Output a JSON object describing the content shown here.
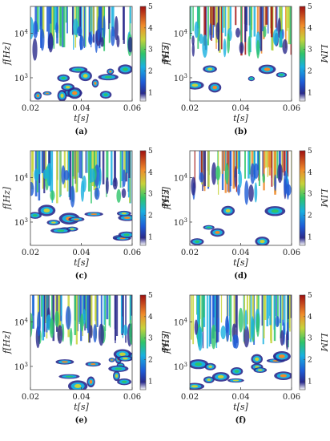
{
  "figure": {
    "panels": [
      {
        "label": "(a)"
      },
      {
        "label": "(b)"
      },
      {
        "label": "(c)"
      },
      {
        "label": "(d)"
      },
      {
        "label": "(e)"
      },
      {
        "label": "(f)"
      }
    ],
    "xlabel": "t[s]",
    "ylabel": "f[Hz]",
    "colorbar_label": "LIM"
  },
  "chart_data": [
    {
      "type": "heatmap",
      "panel": "(a)",
      "xlabel": "t[s]",
      "ylabel": "f[Hz]",
      "x_ticks": [
        "0.02",
        "0.04",
        "0.06"
      ],
      "xlim": [
        0.02,
        0.06
      ],
      "y_ticks": [
        "10^3",
        "10^4"
      ],
      "yscale": "log",
      "ylim": [
        300,
        40000
      ],
      "colorbar": {
        "label": "LIM",
        "ticks": [
          "1",
          "2",
          "3",
          "4",
          "5"
        ],
        "range": [
          0.6,
          5
        ],
        "colormap": "jet"
      }
    },
    {
      "type": "heatmap",
      "panel": "(b)",
      "xlabel": "t[s]",
      "ylabel": "f[Hz]",
      "x_ticks": [
        "0.02",
        "0.04",
        "0.06"
      ],
      "xlim": [
        0.02,
        0.06
      ],
      "y_ticks": [
        "10^3",
        "10^4"
      ],
      "yscale": "log",
      "ylim": [
        300,
        40000
      ],
      "colorbar": {
        "label": "LIM",
        "ticks": [
          "1",
          "2",
          "3",
          "4",
          "5"
        ],
        "range": [
          0.6,
          5
        ],
        "colormap": "jet"
      }
    },
    {
      "type": "heatmap",
      "panel": "(c)",
      "xlabel": "t[s]",
      "ylabel": "f[Hz]",
      "x_ticks": [
        "0.02",
        "0.04",
        "0.06"
      ],
      "xlim": [
        0.02,
        0.06
      ],
      "y_ticks": [
        "10^3",
        "10^4"
      ],
      "yscale": "log",
      "ylim": [
        300,
        40000
      ],
      "colorbar": {
        "label": "LIM",
        "ticks": [
          "1",
          "2",
          "3",
          "4",
          "5"
        ],
        "range": [
          0.6,
          5
        ],
        "colormap": "jet"
      }
    },
    {
      "type": "heatmap",
      "panel": "(d)",
      "xlabel": "t[s]",
      "ylabel": "f[Hz]",
      "x_ticks": [
        "0.02",
        "0.04",
        "0.06"
      ],
      "xlim": [
        0.02,
        0.06
      ],
      "y_ticks": [
        "10^3",
        "10^4"
      ],
      "yscale": "log",
      "ylim": [
        300,
        40000
      ],
      "colorbar": {
        "label": "LIM",
        "ticks": [
          "1",
          "2",
          "3",
          "4",
          "5"
        ],
        "range": [
          0.6,
          5
        ],
        "colormap": "jet"
      }
    },
    {
      "type": "heatmap",
      "panel": "(e)",
      "xlabel": "t[s]",
      "ylabel": "f[Hz]",
      "x_ticks": [
        "0.02",
        "0.04",
        "0.06"
      ],
      "xlim": [
        0.02,
        0.06
      ],
      "y_ticks": [
        "10^3",
        "10^4"
      ],
      "yscale": "log",
      "ylim": [
        300,
        40000
      ],
      "colorbar": {
        "label": "LIM",
        "ticks": [
          "1",
          "2",
          "3",
          "4",
          "5"
        ],
        "range": [
          0.6,
          5
        ],
        "colormap": "jet"
      }
    },
    {
      "type": "heatmap",
      "panel": "(f)",
      "xlabel": "t[s]",
      "ylabel": "f[Hz]",
      "x_ticks": [
        "0.02",
        "0.04",
        "0.06"
      ],
      "xlim": [
        0.02,
        0.06
      ],
      "y_ticks": [
        "10^3",
        "10^4"
      ],
      "yscale": "log",
      "ylim": [
        300,
        40000
      ],
      "colorbar": {
        "label": "LIM",
        "ticks": [
          "1",
          "2",
          "3",
          "4",
          "5"
        ],
        "range": [
          0.6,
          5
        ],
        "colormap": "jet"
      }
    }
  ]
}
